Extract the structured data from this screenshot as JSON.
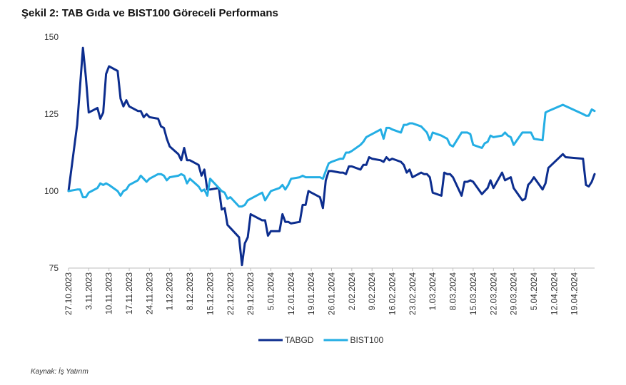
{
  "title": "Şekil 2: TAB Gıda ve BIST100 Göreceli Performans",
  "source": "Kaynak: İş Yatırım",
  "chart_data": {
    "type": "line",
    "title": "Şekil 2: TAB Gıda ve BIST100 Göreceli Performans",
    "ylim": [
      75,
      150
    ],
    "yticks": [
      75,
      100,
      125,
      150
    ],
    "xlim": [
      "27.10.2023",
      "26.04.2024"
    ],
    "xticks": [
      "27.10.2023",
      "3.11.2023",
      "10.11.2023",
      "17.11.2023",
      "24.11.2023",
      "1.12.2023",
      "8.12.2023",
      "15.12.2023",
      "22.12.2023",
      "29.12.2023",
      "5.01.2024",
      "12.01.2024",
      "19.01.2024",
      "26.01.2024",
      "2.02.2024",
      "9.02.2024",
      "16.02.2024",
      "23.02.2024",
      "1.03.2024",
      "8.03.2024",
      "15.03.2024",
      "22.03.2024",
      "29.03.2024",
      "5.04.2024",
      "12.04.2024",
      "19.04.2024"
    ],
    "grid": false,
    "legend": "bottom-center",
    "series": [
      {
        "name": "TABGD",
        "color": "#0c2d8e",
        "points": [
          [
            "27.10.2023",
            100
          ],
          [
            "30.10.2023",
            121.5
          ],
          [
            "1.11.2023",
            146.5
          ],
          [
            "2.11.2023",
            137
          ],
          [
            "3.11.2023",
            125.5
          ],
          [
            "6.11.2023",
            127
          ],
          [
            "7.11.2023",
            123.5
          ],
          [
            "8.11.2023",
            125.5
          ],
          [
            "9.11.2023",
            138
          ],
          [
            "10.11.2023",
            140.5
          ],
          [
            "13.11.2023",
            139
          ],
          [
            "14.11.2023",
            130
          ],
          [
            "15.11.2023",
            127.5
          ],
          [
            "16.11.2023",
            129.5
          ],
          [
            "17.11.2023",
            127.5
          ],
          [
            "20.11.2023",
            126
          ],
          [
            "21.11.2023",
            126
          ],
          [
            "22.11.2023",
            124
          ],
          [
            "23.11.2023",
            125
          ],
          [
            "24.11.2023",
            124
          ],
          [
            "27.11.2023",
            123.5
          ],
          [
            "28.11.2023",
            121
          ],
          [
            "29.11.2023",
            120.5
          ],
          [
            "30.11.2023",
            117
          ],
          [
            "1.12.2023",
            114.5
          ],
          [
            "4.12.2023",
            112
          ],
          [
            "5.12.2023",
            110
          ],
          [
            "6.12.2023",
            114
          ],
          [
            "7.12.2023",
            110
          ],
          [
            "8.12.2023",
            110
          ],
          [
            "11.12.2023",
            108.5
          ],
          [
            "12.12.2023",
            105
          ],
          [
            "13.12.2023",
            107
          ],
          [
            "14.12.2023",
            100.5
          ],
          [
            "15.12.2023",
            100.5
          ],
          [
            "18.12.2023",
            101
          ],
          [
            "19.12.2023",
            94
          ],
          [
            "20.12.2023",
            94.5
          ],
          [
            "21.12.2023",
            89
          ],
          [
            "22.12.2023",
            88
          ],
          [
            "25.12.2023",
            85
          ],
          [
            "26.12.2023",
            76
          ],
          [
            "27.12.2023",
            83
          ],
          [
            "28.12.2023",
            85
          ],
          [
            "29.12.2023",
            92.5
          ],
          [
            "1.01.2024",
            91
          ],
          [
            "2.01.2024",
            90.5
          ],
          [
            "3.01.2024",
            90.5
          ],
          [
            "4.01.2024",
            85.5
          ],
          [
            "5.01.2024",
            87
          ],
          [
            "8.01.2024",
            87
          ],
          [
            "9.01.2024",
            92.5
          ],
          [
            "10.01.2024",
            90
          ],
          [
            "11.01.2024",
            90
          ],
          [
            "12.01.2024",
            89.5
          ],
          [
            "15.01.2024",
            90
          ],
          [
            "16.01.2024",
            95.5
          ],
          [
            "17.01.2024",
            95.5
          ],
          [
            "18.01.2024",
            100
          ],
          [
            "19.01.2024",
            99.5
          ],
          [
            "22.01.2024",
            98
          ],
          [
            "23.01.2024",
            94.5
          ],
          [
            "24.01.2024",
            103.5
          ],
          [
            "25.01.2024",
            106.5
          ],
          [
            "26.01.2024",
            106.5
          ],
          [
            "29.01.2024",
            106
          ],
          [
            "30.01.2024",
            106
          ],
          [
            "31.01.2024",
            105.5
          ],
          [
            "1.02.2024",
            108
          ],
          [
            "2.02.2024",
            108
          ],
          [
            "5.02.2024",
            107
          ],
          [
            "6.02.2024",
            108.5
          ],
          [
            "7.02.2024",
            108.5
          ],
          [
            "8.02.2024",
            111
          ],
          [
            "9.02.2024",
            110.5
          ],
          [
            "12.02.2024",
            110
          ],
          [
            "13.02.2024",
            109.5
          ],
          [
            "14.02.2024",
            111
          ],
          [
            "15.02.2024",
            110
          ],
          [
            "16.02.2024",
            110.5
          ],
          [
            "19.02.2024",
            109.5
          ],
          [
            "20.02.2024",
            108.5
          ],
          [
            "21.02.2024",
            106
          ],
          [
            "22.02.2024",
            107
          ],
          [
            "23.02.2024",
            104.5
          ],
          [
            "26.02.2024",
            106
          ],
          [
            "27.02.2024",
            105.5
          ],
          [
            "28.02.2024",
            105.5
          ],
          [
            "29.02.2024",
            104.5
          ],
          [
            "1.03.2024",
            99.5
          ],
          [
            "4.03.2024",
            98.5
          ],
          [
            "5.03.2024",
            106
          ],
          [
            "6.03.2024",
            105.5
          ],
          [
            "7.03.2024",
            105.5
          ],
          [
            "8.03.2024",
            104.5
          ],
          [
            "11.03.2024",
            98.5
          ],
          [
            "12.03.2024",
            103
          ],
          [
            "13.03.2024",
            103
          ],
          [
            "14.03.2024",
            103.5
          ],
          [
            "15.03.2024",
            103
          ],
          [
            "18.03.2024",
            99
          ],
          [
            "19.03.2024",
            100
          ],
          [
            "20.03.2024",
            101
          ],
          [
            "21.03.2024",
            103.5
          ],
          [
            "22.03.2024",
            101
          ],
          [
            "25.03.2024",
            106
          ],
          [
            "26.03.2024",
            103.5
          ],
          [
            "27.03.2024",
            104
          ],
          [
            "28.03.2024",
            104.5
          ],
          [
            "29.03.2024",
            101
          ],
          [
            "1.04.2024",
            97
          ],
          [
            "2.04.2024",
            97.5
          ],
          [
            "3.04.2024",
            102
          ],
          [
            "4.04.2024",
            103
          ],
          [
            "5.04.2024",
            104.5
          ],
          [
            "8.04.2024",
            100.5
          ],
          [
            "9.04.2024",
            102.5
          ],
          [
            "10.04.2024",
            107.5
          ],
          [
            "15.04.2024",
            112
          ],
          [
            "16.04.2024",
            111
          ],
          [
            "22.04.2024",
            110.5
          ],
          [
            "23.04.2024",
            102
          ],
          [
            "24.04.2024",
            101.5
          ],
          [
            "25.04.2024",
            103
          ],
          [
            "26.04.2024",
            105.5
          ]
        ]
      },
      {
        "name": "BIST100",
        "color": "#24aee4",
        "points": [
          [
            "27.10.2023",
            100
          ],
          [
            "30.10.2023",
            100.5
          ],
          [
            "31.10.2023",
            100.5
          ],
          [
            "1.11.2023",
            98
          ],
          [
            "2.11.2023",
            98
          ],
          [
            "3.11.2023",
            99.5
          ],
          [
            "6.11.2023",
            101
          ],
          [
            "7.11.2023",
            102.5
          ],
          [
            "8.11.2023",
            102
          ],
          [
            "9.11.2023",
            102.5
          ],
          [
            "10.11.2023",
            102
          ],
          [
            "13.11.2023",
            100
          ],
          [
            "14.11.2023",
            98.5
          ],
          [
            "15.11.2023",
            100
          ],
          [
            "16.11.2023",
            100.5
          ],
          [
            "17.11.2023",
            102
          ],
          [
            "20.11.2023",
            103.5
          ],
          [
            "21.11.2023",
            105
          ],
          [
            "22.11.2023",
            104
          ],
          [
            "23.11.2023",
            103
          ],
          [
            "24.11.2023",
            104
          ],
          [
            "27.11.2023",
            105.5
          ],
          [
            "28.11.2023",
            105.5
          ],
          [
            "29.11.2023",
            105
          ],
          [
            "30.11.2023",
            103.5
          ],
          [
            "1.12.2023",
            104.5
          ],
          [
            "4.12.2023",
            105
          ],
          [
            "5.12.2023",
            105.5
          ],
          [
            "6.12.2023",
            105
          ],
          [
            "7.12.2023",
            102.5
          ],
          [
            "8.12.2023",
            104
          ],
          [
            "11.12.2023",
            101.5
          ],
          [
            "12.12.2023",
            100
          ],
          [
            "13.12.2023",
            100.5
          ],
          [
            "14.12.2023",
            98.5
          ],
          [
            "15.12.2023",
            104
          ],
          [
            "18.12.2023",
            101
          ],
          [
            "19.12.2023",
            100
          ],
          [
            "20.12.2023",
            99.5
          ],
          [
            "21.12.2023",
            97.5
          ],
          [
            "22.12.2023",
            98
          ],
          [
            "25.12.2023",
            95
          ],
          [
            "26.12.2023",
            95
          ],
          [
            "27.12.2023",
            95.5
          ],
          [
            "28.12.2023",
            97
          ],
          [
            "29.12.2023",
            97.5
          ],
          [
            "1.01.2024",
            99
          ],
          [
            "2.01.2024",
            99.5
          ],
          [
            "3.01.2024",
            97
          ],
          [
            "4.01.2024",
            98.5
          ],
          [
            "5.01.2024",
            100
          ],
          [
            "8.01.2024",
            101
          ],
          [
            "9.01.2024",
            102
          ],
          [
            "10.01.2024",
            100.5
          ],
          [
            "11.01.2024",
            102
          ],
          [
            "12.01.2024",
            104
          ],
          [
            "15.01.2024",
            104.5
          ],
          [
            "16.01.2024",
            105
          ],
          [
            "17.01.2024",
            104.5
          ],
          [
            "18.01.2024",
            104.5
          ],
          [
            "19.01.2024",
            104.5
          ],
          [
            "22.01.2024",
            104.5
          ],
          [
            "23.01.2024",
            104
          ],
          [
            "24.01.2024",
            106.5
          ],
          [
            "25.01.2024",
            109
          ],
          [
            "26.01.2024",
            109.5
          ],
          [
            "29.01.2024",
            110.5
          ],
          [
            "30.01.2024",
            110.5
          ],
          [
            "31.01.2024",
            112.5
          ],
          [
            "1.02.2024",
            112.5
          ],
          [
            "2.02.2024",
            113
          ],
          [
            "5.02.2024",
            115
          ],
          [
            "6.02.2024",
            116
          ],
          [
            "7.02.2024",
            117.5
          ],
          [
            "8.02.2024",
            118
          ],
          [
            "9.02.2024",
            118.5
          ],
          [
            "12.02.2024",
            120
          ],
          [
            "13.02.2024",
            117
          ],
          [
            "14.02.2024",
            120.5
          ],
          [
            "15.02.2024",
            120.5
          ],
          [
            "16.02.2024",
            120
          ],
          [
            "19.02.2024",
            119
          ],
          [
            "20.02.2024",
            121.5
          ],
          [
            "21.02.2024",
            121.5
          ],
          [
            "22.02.2024",
            122
          ],
          [
            "23.02.2024",
            122
          ],
          [
            "26.02.2024",
            121
          ],
          [
            "27.02.2024",
            120
          ],
          [
            "28.02.2024",
            119
          ],
          [
            "29.02.2024",
            116.5
          ],
          [
            "1.03.2024",
            119
          ],
          [
            "4.03.2024",
            118
          ],
          [
            "5.03.2024",
            117.5
          ],
          [
            "6.03.2024",
            117
          ],
          [
            "7.03.2024",
            115
          ],
          [
            "8.03.2024",
            114.5
          ],
          [
            "11.03.2024",
            119
          ],
          [
            "12.03.2024",
            119
          ],
          [
            "13.03.2024",
            119
          ],
          [
            "14.03.2024",
            118.5
          ],
          [
            "15.03.2024",
            115
          ],
          [
            "18.03.2024",
            114
          ],
          [
            "19.03.2024",
            115.5
          ],
          [
            "20.03.2024",
            116
          ],
          [
            "21.03.2024",
            118
          ],
          [
            "22.03.2024",
            117.5
          ],
          [
            "25.03.2024",
            118
          ],
          [
            "26.03.2024",
            119
          ],
          [
            "27.03.2024",
            118
          ],
          [
            "28.03.2024",
            117.5
          ],
          [
            "29.03.2024",
            115
          ],
          [
            "1.04.2024",
            119
          ],
          [
            "2.04.2024",
            119
          ],
          [
            "3.04.2024",
            119
          ],
          [
            "4.04.2024",
            119
          ],
          [
            "5.04.2024",
            117
          ],
          [
            "8.04.2024",
            116.5
          ],
          [
            "9.04.2024",
            125.5
          ],
          [
            "10.04.2024",
            126
          ],
          [
            "15.04.2024",
            128
          ],
          [
            "22.04.2024",
            125
          ],
          [
            "23.04.2024",
            124.5
          ],
          [
            "24.04.2024",
            124.5
          ],
          [
            "25.04.2024",
            126.5
          ],
          [
            "26.04.2024",
            126
          ]
        ]
      }
    ]
  }
}
